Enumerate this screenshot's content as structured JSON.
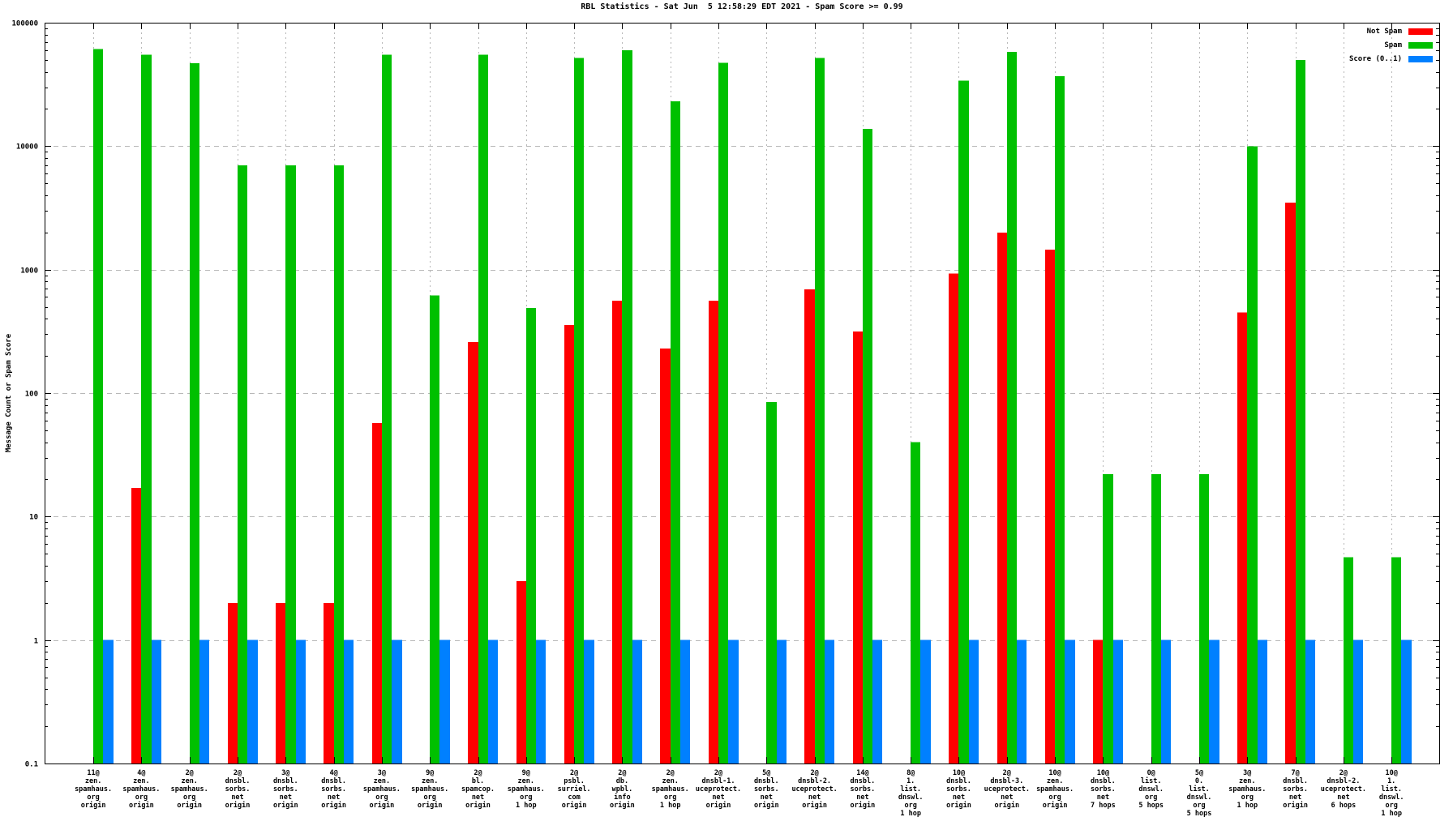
{
  "title": "RBL Statistics - Sat Jun  5 12:58:29 EDT 2021 - Spam Score >= 0.99",
  "y_axis": {
    "title": "Message Count or Spam Score",
    "ticks": [
      "0.1",
      "1",
      "10",
      "100",
      "1000",
      "10000",
      "100000"
    ]
  },
  "legend": {
    "entries": [
      {
        "label": "Not Spam",
        "color": "#ff0000"
      },
      {
        "label": "Spam",
        "color": "#00c000"
      },
      {
        "label": "Score (0..1)",
        "color": "#0080ff"
      }
    ]
  },
  "colors": {
    "not_spam": "#ff0000",
    "spam": "#00c000",
    "score": "#0080ff",
    "grid": "#b8b8b8",
    "axis": "#000000",
    "background": "#ffffff"
  },
  "chart_data": {
    "type": "bar",
    "scale": "log",
    "title": "RBL Statistics - Sat Jun  5 12:58:29 EDT 2021 - Spam Score >= 0.99",
    "ylabel": "Message Count or Spam Score",
    "ylim": [
      0.1,
      100000
    ],
    "grid": true,
    "legend_position": "top-right",
    "categories": [
      "11@zen.spamhaus.org origin",
      "4@zen.spamhaus.org origin",
      "2@zen.spamhaus.org origin",
      "2@dnsbl.sorbs.net origin",
      "3@dnsbl.sorbs.net origin",
      "4@dnsbl.sorbs.net origin",
      "3@zen.spamhaus.org origin",
      "9@zen.spamhaus.org origin",
      "2@bl.spamcop.net origin",
      "9@zen.spamhaus.org 1 hop",
      "2@psbl.surriel.com origin",
      "2@db.wpbl.info origin",
      "2@zen.spamhaus.org 1 hop",
      "2@dnsbl-1.uceprotect.net origin",
      "5@dnsbl.sorbs.net origin",
      "2@dnsbl-2.uceprotect.net origin",
      "14@dnsbl.sorbs.net origin",
      "8@1.list.dnswl.org 1 hop",
      "10@dnsbl.sorbs.net origin",
      "2@dnsbl-3.uceprotect.net origin",
      "10@zen.spamhaus.org origin",
      "10@dnsbl.sorbs.net 7 hops",
      "0@list.dnswl.org 5 hops",
      "5@0.list.dnswl.org 5 hops",
      "3@zen.spamhaus.org 1 hop",
      "7@dnsbl.sorbs.net origin",
      "2@dnsbl-2.uceprotect.net 6 hops",
      "10@1.list.dnswl.org 1 hop"
    ],
    "category_label_lines": [
      [
        "11@",
        "zen.",
        "spamhaus.",
        "org",
        "origin"
      ],
      [
        "4@",
        "zen.",
        "spamhaus.",
        "org",
        "origin"
      ],
      [
        "2@",
        "zen.",
        "spamhaus.",
        "org",
        "origin"
      ],
      [
        "2@",
        "dnsbl.",
        "sorbs.",
        "net",
        "origin"
      ],
      [
        "3@",
        "dnsbl.",
        "sorbs.",
        "net",
        "origin"
      ],
      [
        "4@",
        "dnsbl.",
        "sorbs.",
        "net",
        "origin"
      ],
      [
        "3@",
        "zen.",
        "spamhaus.",
        "org",
        "origin"
      ],
      [
        "9@",
        "zen.",
        "spamhaus.",
        "org",
        "origin"
      ],
      [
        "2@",
        "bl.",
        "spamcop.",
        "net",
        "origin"
      ],
      [
        "9@",
        "zen.",
        "spamhaus.",
        "org",
        "1 hop"
      ],
      [
        "2@",
        "psbl.",
        "surriel.",
        "com",
        "origin"
      ],
      [
        "2@",
        "db.",
        "wpbl.",
        "info",
        "origin"
      ],
      [
        "2@",
        "zen.",
        "spamhaus.",
        "org",
        "1 hop"
      ],
      [
        "2@",
        "dnsbl-1.",
        "uceprotect.",
        "net",
        "origin"
      ],
      [
        "5@",
        "dnsbl.",
        "sorbs.",
        "net",
        "origin"
      ],
      [
        "2@",
        "dnsbl-2.",
        "uceprotect.",
        "net",
        "origin"
      ],
      [
        "14@",
        "dnsbl.",
        "sorbs.",
        "net",
        "origin"
      ],
      [
        "8@",
        "1.",
        "list.",
        "dnswl.",
        "org",
        "1 hop"
      ],
      [
        "10@",
        "dnsbl.",
        "sorbs.",
        "net",
        "origin"
      ],
      [
        "2@",
        "dnsbl-3.",
        "uceprotect.",
        "net",
        "origin"
      ],
      [
        "10@",
        "zen.",
        "spamhaus.",
        "org",
        "origin"
      ],
      [
        "10@",
        "dnsbl.",
        "sorbs.",
        "net",
        "7 hops"
      ],
      [
        "0@",
        "list.",
        "dnswl.",
        "org",
        "5 hops"
      ],
      [
        "5@",
        "0.",
        "list.",
        "dnswl.",
        "org",
        "5 hops"
      ],
      [
        "3@",
        "zen.",
        "spamhaus.",
        "org",
        "1 hop"
      ],
      [
        "7@",
        "dnsbl.",
        "sorbs.",
        "net",
        "origin"
      ],
      [
        "2@",
        "dnsbl-2.",
        "uceprotect.",
        "net",
        "6 hops"
      ],
      [
        "10@",
        "1.",
        "list.",
        "dnswl.",
        "org",
        "1 hop"
      ]
    ],
    "series": [
      {
        "name": "Not Spam",
        "color": "#ff0000",
        "values": [
          null,
          17,
          null,
          2,
          2,
          2,
          57,
          null,
          260,
          3,
          355,
          560,
          230,
          560,
          null,
          690,
          315,
          null,
          930,
          2000,
          1450,
          1,
          null,
          null,
          450,
          3500,
          null,
          null
        ]
      },
      {
        "name": "Spam",
        "color": "#00c000",
        "values": [
          61000,
          55000,
          47000,
          7000,
          7000,
          7000,
          55000,
          620,
          55000,
          490,
          52000,
          60000,
          23000,
          47500,
          85,
          52000,
          13800,
          40,
          34000,
          58000,
          37000,
          22,
          22,
          22,
          10000,
          50000,
          4.7,
          4.7
        ]
      },
      {
        "name": "Score (0..1)",
        "color": "#0080ff",
        "values": [
          1,
          1,
          1,
          1,
          1,
          1,
          1,
          1,
          1,
          1,
          1,
          1,
          1,
          1,
          1,
          1,
          1,
          1,
          1,
          1,
          1,
          1,
          1,
          1,
          1,
          1,
          1,
          1
        ]
      }
    ]
  }
}
